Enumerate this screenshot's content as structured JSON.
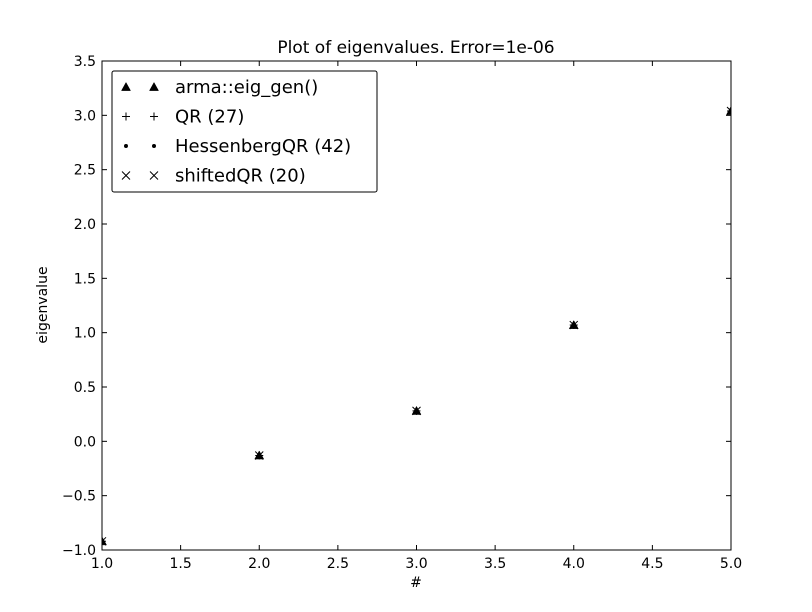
{
  "chart_data": {
    "type": "scatter",
    "title": "Plot of eigenvalues. Error=1e-06",
    "xlabel": "#",
    "ylabel": "eigenvalue",
    "xlim": [
      1.0,
      5.0
    ],
    "ylim": [
      -1.0,
      3.5
    ],
    "xticks": [
      1.0,
      1.5,
      2.0,
      2.5,
      3.0,
      3.5,
      4.0,
      4.5,
      5.0
    ],
    "xtick_labels": [
      "1.0",
      "1.5",
      "2.0",
      "2.5",
      "3.0",
      "3.5",
      "4.0",
      "4.5",
      "5.0"
    ],
    "yticks": [
      -1.0,
      -0.5,
      0.0,
      0.5,
      1.0,
      1.5,
      2.0,
      2.5,
      3.0,
      3.5
    ],
    "ytick_labels": [
      "−1.0",
      "−0.5",
      "0.0",
      "0.5",
      "1.0",
      "1.5",
      "2.0",
      "2.5",
      "3.0",
      "3.5"
    ],
    "grid": false,
    "legend_position": "top-left",
    "series": [
      {
        "name": "arma::eig_gen()",
        "marker": "triangle",
        "color": "#000000",
        "x": [
          1,
          2,
          3,
          4,
          5
        ],
        "y": [
          -0.92,
          -0.13,
          0.28,
          1.07,
          3.04
        ]
      },
      {
        "name": "QR (27)",
        "marker": "plus",
        "color": "#000000",
        "x": [
          1,
          2,
          3,
          4,
          5
        ],
        "y": [
          -0.92,
          -0.13,
          0.28,
          1.07,
          3.04
        ]
      },
      {
        "name": "HessenbergQR (42)",
        "marker": "dot",
        "color": "#000000",
        "x": [
          1,
          2,
          3,
          4,
          5
        ],
        "y": [
          -0.92,
          -0.13,
          0.28,
          1.07,
          3.04
        ]
      },
      {
        "name": "shiftedQR (20)",
        "marker": "x",
        "color": "#000000",
        "x": [
          1,
          2,
          3,
          4,
          5
        ],
        "y": [
          -0.92,
          -0.13,
          0.28,
          1.07,
          3.04
        ]
      }
    ]
  }
}
